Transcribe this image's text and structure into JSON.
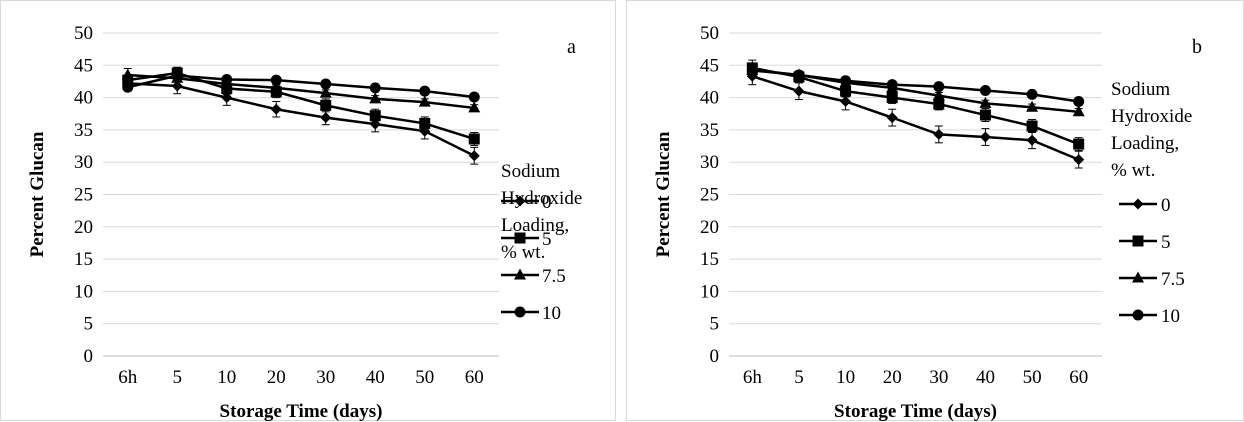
{
  "legend": {
    "title_lines": [
      "Sodium",
      "Hydroxide",
      "Loading,",
      "% wt."
    ]
  },
  "chart_data": [
    {
      "type": "line",
      "panel_label": "a",
      "xlabel": "Storage Time (days)",
      "ylabel": "Percent Glucan",
      "categories": [
        "6h",
        "5",
        "10",
        "20",
        "30",
        "40",
        "50",
        "60"
      ],
      "ylim": [
        0,
        50
      ],
      "yticks": [
        0,
        5,
        10,
        15,
        20,
        25,
        30,
        35,
        40,
        45,
        50
      ],
      "grid": true,
      "legend_position": "right",
      "series": [
        {
          "name": "0",
          "marker": "diamond",
          "values": [
            42.2,
            41.8,
            40.0,
            38.2,
            36.9,
            35.9,
            34.8,
            31.0
          ],
          "errors": [
            0.8,
            1.2,
            1.2,
            1.2,
            1.1,
            1.2,
            1.2,
            1.3
          ]
        },
        {
          "name": "5",
          "marker": "square",
          "values": [
            42.7,
            43.8,
            41.4,
            40.9,
            38.8,
            37.2,
            36.0,
            33.6
          ],
          "errors": [
            0.8,
            0.9,
            0.9,
            0.9,
            1.0,
            1.0,
            1.0,
            1.0
          ]
        },
        {
          "name": "7.5",
          "marker": "triangle",
          "values": [
            43.5,
            43.0,
            42.1,
            41.5,
            40.7,
            39.8,
            39.3,
            38.4
          ],
          "errors": [
            1.0,
            0.5,
            0.5,
            0.5,
            0.5,
            0.5,
            0.5,
            0.5
          ]
        },
        {
          "name": "10",
          "marker": "circle",
          "values": [
            41.6,
            43.4,
            42.8,
            42.7,
            42.1,
            41.5,
            41.0,
            40.1
          ],
          "errors": [
            0.5,
            0.4,
            0.4,
            0.4,
            0.4,
            0.4,
            0.4,
            0.4
          ]
        }
      ]
    },
    {
      "type": "line",
      "panel_label": "b",
      "xlabel": "Storage Time (days)",
      "ylabel": "Percent Glucan",
      "categories": [
        "6h",
        "5",
        "10",
        "20",
        "30",
        "40",
        "50",
        "60"
      ],
      "ylim": [
        0,
        50
      ],
      "yticks": [
        0,
        5,
        10,
        15,
        20,
        25,
        30,
        35,
        40,
        45,
        50
      ],
      "grid": true,
      "legend_position": "right",
      "series": [
        {
          "name": "0",
          "marker": "diamond",
          "values": [
            43.3,
            41.0,
            39.4,
            36.9,
            34.3,
            33.9,
            33.4,
            30.4
          ],
          "errors": [
            1.3,
            1.3,
            1.3,
            1.3,
            1.3,
            1.3,
            1.3,
            1.3
          ]
        },
        {
          "name": "5",
          "marker": "square",
          "values": [
            44.6,
            43.2,
            41.0,
            40.0,
            39.0,
            37.3,
            35.6,
            32.8
          ],
          "errors": [
            1.2,
            0.9,
            0.9,
            0.9,
            0.9,
            1.0,
            1.0,
            1.0
          ]
        },
        {
          "name": "7.5",
          "marker": "triangle",
          "values": [
            44.2,
            43.5,
            42.3,
            41.5,
            40.3,
            39.1,
            38.5,
            37.8
          ],
          "errors": [
            0.6,
            0.5,
            0.5,
            0.5,
            0.5,
            0.5,
            0.5,
            0.5
          ]
        },
        {
          "name": "10",
          "marker": "circle",
          "values": [
            44.3,
            43.5,
            42.6,
            42.0,
            41.7,
            41.1,
            40.5,
            39.4
          ],
          "errors": [
            0.5,
            0.4,
            0.4,
            0.4,
            0.4,
            0.4,
            0.4,
            0.4
          ]
        }
      ]
    }
  ]
}
